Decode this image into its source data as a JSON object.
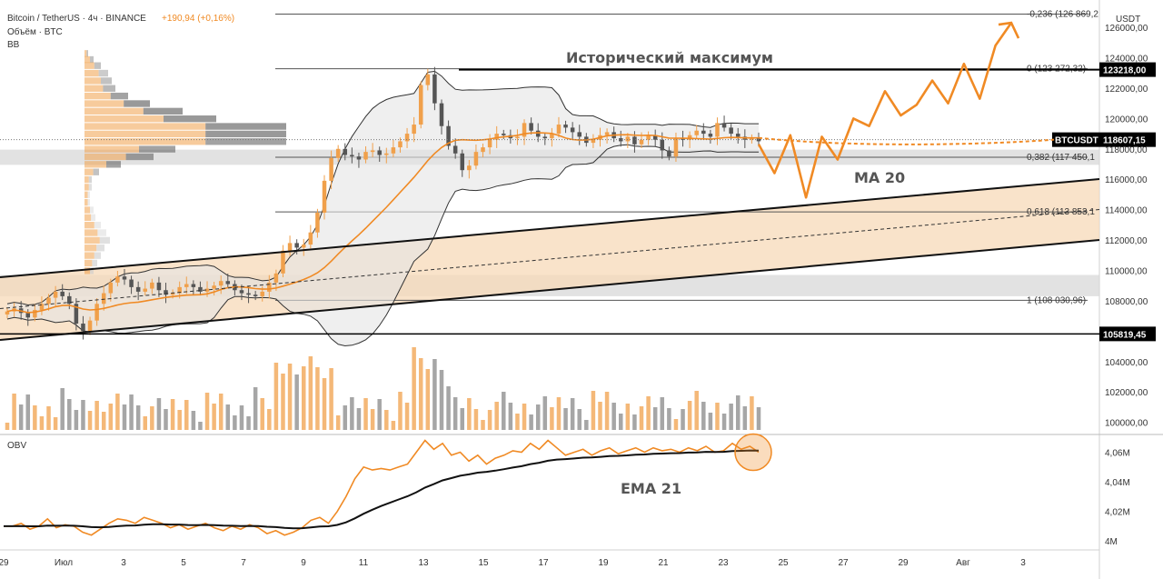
{
  "header": {
    "symbol": "Bitcoin / TetherUS · 4ч · BINANCE",
    "change": "+190,94 (+0,16%)",
    "volume_label": "Объём · BTC",
    "bb_label": "BB"
  },
  "obv_label": "OBV",
  "currency_label": "USDT",
  "annotations": {
    "ath": "Исторический максимум",
    "ma20": "MA 20",
    "ema21": "EMA 21"
  },
  "fib_levels": [
    {
      "label": "-0,236 (126 869,2",
      "price": 126869.2
    },
    {
      "label": "0 (123 272,32)",
      "price": 123272.32
    },
    {
      "label": "0,382 (117 450,1",
      "price": 117450.1
    },
    {
      "label": "0,618 (113 853,1",
      "price": 113853.1
    },
    {
      "label": "1 (108 030,96)",
      "price": 108030.96
    }
  ],
  "price_tags": [
    {
      "label": "123218,00",
      "price": 123218,
      "color": "#000000"
    },
    {
      "label": "BTCUSDT",
      "value": "118607,15",
      "price": 118607.15,
      "color": "#000000"
    },
    {
      "label": "105819,45",
      "price": 105819.45,
      "color": "#000000"
    }
  ],
  "colors": {
    "up": "#f0a04b",
    "down": "#555555",
    "bb_fill": "#e5e5e5",
    "channel_fill": "#f7d9b8",
    "accent": "#f08a24"
  },
  "chart_data": [
    {
      "type": "line",
      "title": "",
      "y_axis": {
        "ticks": [
          "126000,00",
          "124000,00",
          "122000,00",
          "120000,00",
          "118000,00",
          "116000,00",
          "114000,00",
          "112000,00",
          "110000,00",
          "108000,00",
          "106000,00",
          "104000,00",
          "102000,00",
          "100000,00"
        ],
        "ylim": [
          99200,
          127800
        ]
      },
      "x_axis": {
        "ticks": [
          "29",
          "Июл",
          "3",
          "5",
          "7",
          "9",
          "11",
          "13",
          "15",
          "17",
          "19",
          "21",
          "23",
          "25",
          "27",
          "29",
          "Авг",
          "3"
        ]
      },
      "series": [
        {
          "values_close": [
            107300,
            107500,
            107200,
            106900,
            107400,
            107800,
            108200,
            108600,
            108300,
            107800,
            106500,
            106000,
            106700,
            107800,
            108500,
            109200,
            109600,
            109400,
            108900,
            108600,
            108800,
            109200,
            108700,
            108400,
            108500,
            108900,
            109100,
            108900,
            108600,
            108800,
            109000,
            109300,
            109100,
            108700,
            108500,
            108400,
            108300,
            108600,
            109200,
            109800,
            111300,
            111800,
            111500,
            111700,
            112500,
            113800,
            115900,
            117400,
            118000,
            117600,
            117500,
            117300,
            117800,
            117900,
            117600,
            117700,
            118100,
            118500,
            119000,
            119600,
            122200,
            122900,
            121000,
            119500,
            118200,
            117700,
            116600,
            116900,
            117800,
            118100,
            118600,
            119000,
            118900,
            118700,
            118800,
            119700,
            119200,
            118800,
            118700,
            119000,
            119600,
            119400,
            119100,
            118800,
            118400,
            118600,
            118900,
            119100,
            118700,
            118500,
            118800,
            118300,
            118600,
            118900,
            118600,
            117900,
            117500,
            118700,
            118600,
            118900,
            119200,
            119000,
            118800,
            119700,
            119400,
            119000,
            118800,
            118600,
            118700,
            118500
          ]
        }
      ],
      "projection": [
        118300,
        116400,
        118900,
        114800,
        118800,
        117300,
        120000,
        119500,
        121800,
        120200,
        120900,
        122500,
        121000,
        123600,
        121300,
        124800,
        126300
      ]
    },
    {
      "type": "line",
      "title": "",
      "series_obv": [
        4.01,
        4.01,
        4.012,
        4.008,
        4.01,
        4.015,
        4.009,
        4.011,
        4.01,
        4.006,
        4.004,
        4.008,
        4.012,
        4.015,
        4.014,
        4.012,
        4.016,
        4.014,
        4.012,
        4.009,
        4.011,
        4.008,
        4.01,
        4.012,
        4.009,
        4.007,
        4.01,
        4.008,
        4.011,
        4.009,
        4.005,
        4.007,
        4.004,
        4.006,
        4.009,
        4.014,
        4.016,
        4.012,
        4.02,
        4.03,
        4.042,
        4.05,
        4.048,
        4.049,
        4.048,
        4.05,
        4.052,
        4.06,
        4.068,
        4.062,
        4.066,
        4.058,
        4.06,
        4.054,
        4.058,
        4.052,
        4.056,
        4.058,
        4.061,
        4.06,
        4.066,
        4.062,
        4.068,
        4.063,
        4.058,
        4.06,
        4.062,
        4.058,
        4.061,
        4.063,
        4.059,
        4.061,
        4.063,
        4.06,
        4.063,
        4.061,
        4.062,
        4.06,
        4.063,
        4.061,
        4.064,
        4.06,
        4.061,
        4.066,
        4.062,
        4.064,
        4.06
      ],
      "ylim": [
        3.994,
        4.072
      ],
      "y_axis": {
        "ticks": [
          "4,06M",
          "4,04M",
          "4,02M",
          "4M"
        ]
      }
    }
  ]
}
